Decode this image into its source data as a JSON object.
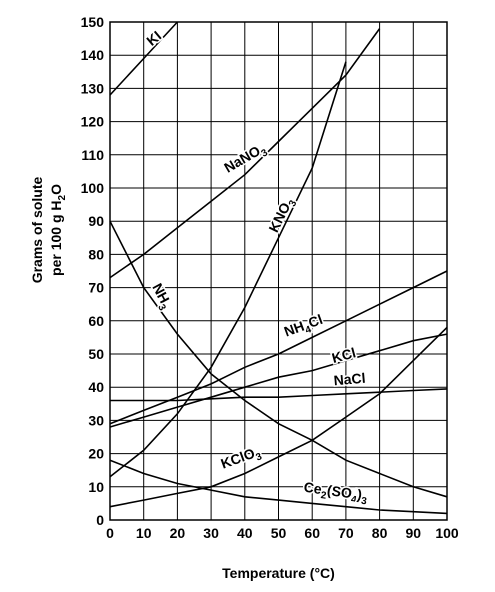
{
  "chart_data": {
    "type": "line",
    "ylabel_lines": [
      "Grams of solute",
      "per 100 g H2O"
    ],
    "xlabel": "Temperature (°C)",
    "x": [
      0,
      10,
      20,
      30,
      40,
      50,
      60,
      70,
      80,
      90,
      100
    ],
    "xlim": [
      0,
      100
    ],
    "xticks": [
      0,
      10,
      20,
      30,
      40,
      50,
      60,
      70,
      80,
      90,
      100
    ],
    "ylim": [
      0,
      150
    ],
    "yticks": [
      0,
      10,
      20,
      30,
      40,
      50,
      60,
      70,
      80,
      90,
      100,
      110,
      120,
      130,
      140,
      150
    ],
    "grid": true,
    "series": [
      {
        "name": "KI",
        "color": "#000000",
        "values": [
          128,
          139,
          150,
          null,
          null,
          null,
          null,
          null,
          null,
          null,
          null
        ]
      },
      {
        "name": "NaNO3",
        "color": "#000000",
        "values": [
          73,
          80,
          88,
          96,
          104,
          114,
          124,
          134,
          148,
          null,
          null
        ]
      },
      {
        "name": "KNO3",
        "color": "#000000",
        "values": [
          13,
          21,
          32,
          46,
          64,
          85,
          106,
          138,
          null,
          null,
          null
        ]
      },
      {
        "name": "NH3",
        "color": "#000000",
        "values": [
          90,
          70,
          56,
          44,
          36,
          29,
          24,
          18,
          14,
          10,
          7
        ]
      },
      {
        "name": "NH4Cl",
        "color": "#000000",
        "values": [
          29,
          33,
          37,
          41,
          46,
          50,
          55,
          60,
          65,
          70,
          75
        ]
      },
      {
        "name": "KCl",
        "color": "#000000",
        "values": [
          28,
          31,
          34,
          37,
          40,
          43,
          45,
          48,
          51,
          54,
          56
        ]
      },
      {
        "name": "NaCl",
        "color": "#000000",
        "values": [
          36,
          36,
          36,
          36.5,
          37,
          37,
          37.5,
          38,
          38.5,
          39,
          39.5
        ]
      },
      {
        "name": "KClO3",
        "color": "#000000",
        "values": [
          4,
          6,
          8,
          10,
          14,
          19,
          24,
          31,
          38,
          48,
          58
        ]
      },
      {
        "name": "Ce2(SO4)3",
        "color": "#000000",
        "values": [
          18,
          14,
          11,
          9,
          7,
          6,
          5,
          4,
          3,
          2.5,
          2
        ]
      }
    ]
  }
}
